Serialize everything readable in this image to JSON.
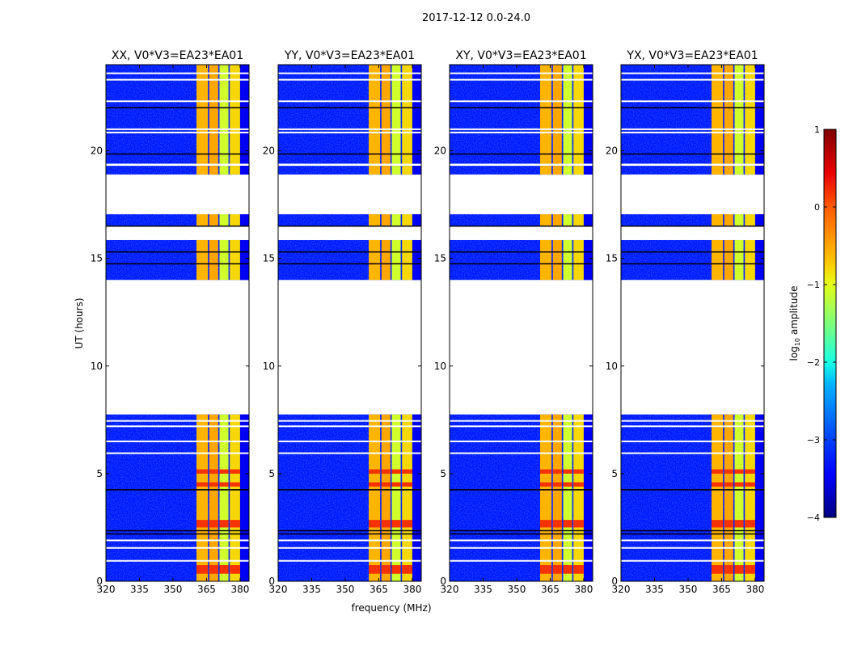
{
  "chart_data": {
    "type": "heatmap",
    "title": "2017-12-12 0.0-24.0",
    "xlabel": "frequency (MHz)",
    "ylabel": "UT (hours)",
    "xlim": [
      320,
      384
    ],
    "ylim": [
      0,
      24
    ],
    "xticks": [
      320,
      335,
      350,
      365,
      380
    ],
    "yticks": [
      0,
      5,
      10,
      15,
      20
    ],
    "panels": [
      {
        "title": "XX, V0*V3=EA23*EA01"
      },
      {
        "title": "YY, V0*V3=EA23*EA01"
      },
      {
        "title": "XY, V0*V3=EA23*EA01"
      },
      {
        "title": "YX, V0*V3=EA23*EA01"
      }
    ],
    "data_blocks_hours": [
      [
        0,
        7.75
      ],
      [
        14.0,
        15.85
      ],
      [
        16.5,
        17.05
      ],
      [
        18.9,
        19.3
      ],
      [
        19.4,
        24
      ]
    ],
    "background_log_amplitude": -3.3,
    "rfi_band_columns": [
      {
        "fmin": 360.5,
        "fmax": 365.6,
        "log_amplitude": -0.6
      },
      {
        "fmin": 366.2,
        "fmax": 370.2,
        "log_amplitude": -0.5
      },
      {
        "fmin": 370.8,
        "fmax": 374.8,
        "log_amplitude": -1.1
      },
      {
        "fmin": 375.4,
        "fmax": 380.0,
        "log_amplitude": -0.8
      }
    ],
    "hot_intervals_hours": [
      [
        0.35,
        0.75
      ],
      [
        2.5,
        2.85
      ],
      [
        4.4,
        4.6
      ],
      [
        5.0,
        5.2
      ]
    ],
    "hot_log_amplitude": 0.2,
    "flagged_lines_hours": [
      23.6,
      23.3,
      22.3,
      21.0,
      20.85,
      7.45,
      7.2,
      6.5,
      5.95,
      1.9,
      1.55,
      0.95
    ],
    "zero_lines_hours": [
      22.0,
      19.85,
      15.3,
      14.75,
      4.25,
      2.35,
      2.2,
      16.5
    ],
    "colorbar": {
      "label": "log",
      "label_sub": "10",
      "label_rest": " amplitude",
      "range": [
        -4,
        1
      ],
      "ticks": [
        "−4",
        "−3",
        "−2",
        "−1",
        "0",
        "1"
      ],
      "tick_values": [
        -4,
        -3,
        -2,
        -1,
        0,
        1
      ]
    }
  }
}
